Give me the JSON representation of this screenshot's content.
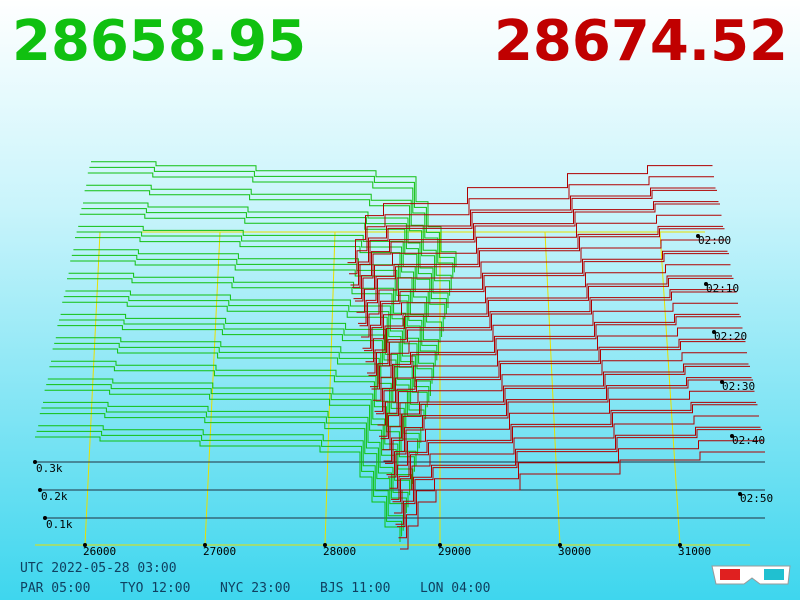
{
  "header": {
    "bid": "28658.95",
    "ask": "28674.52"
  },
  "price_axis": {
    "labels": [
      "26000",
      "27000",
      "28000",
      "29000",
      "30000",
      "31000"
    ]
  },
  "depth_axis": {
    "labels": [
      "0.3k",
      "0.2k",
      "0.1k"
    ]
  },
  "time_axis": {
    "labels": [
      "02:00",
      "02:10",
      "02:20",
      "02:30",
      "02:40",
      "02:50"
    ]
  },
  "footer": {
    "utc": "UTC 2022-05-28 03:00",
    "cities": [
      "PAR 05:00",
      "TYO 12:00",
      "NYC 23:00",
      "BJS 11:00",
      "LON 04:00"
    ]
  }
}
